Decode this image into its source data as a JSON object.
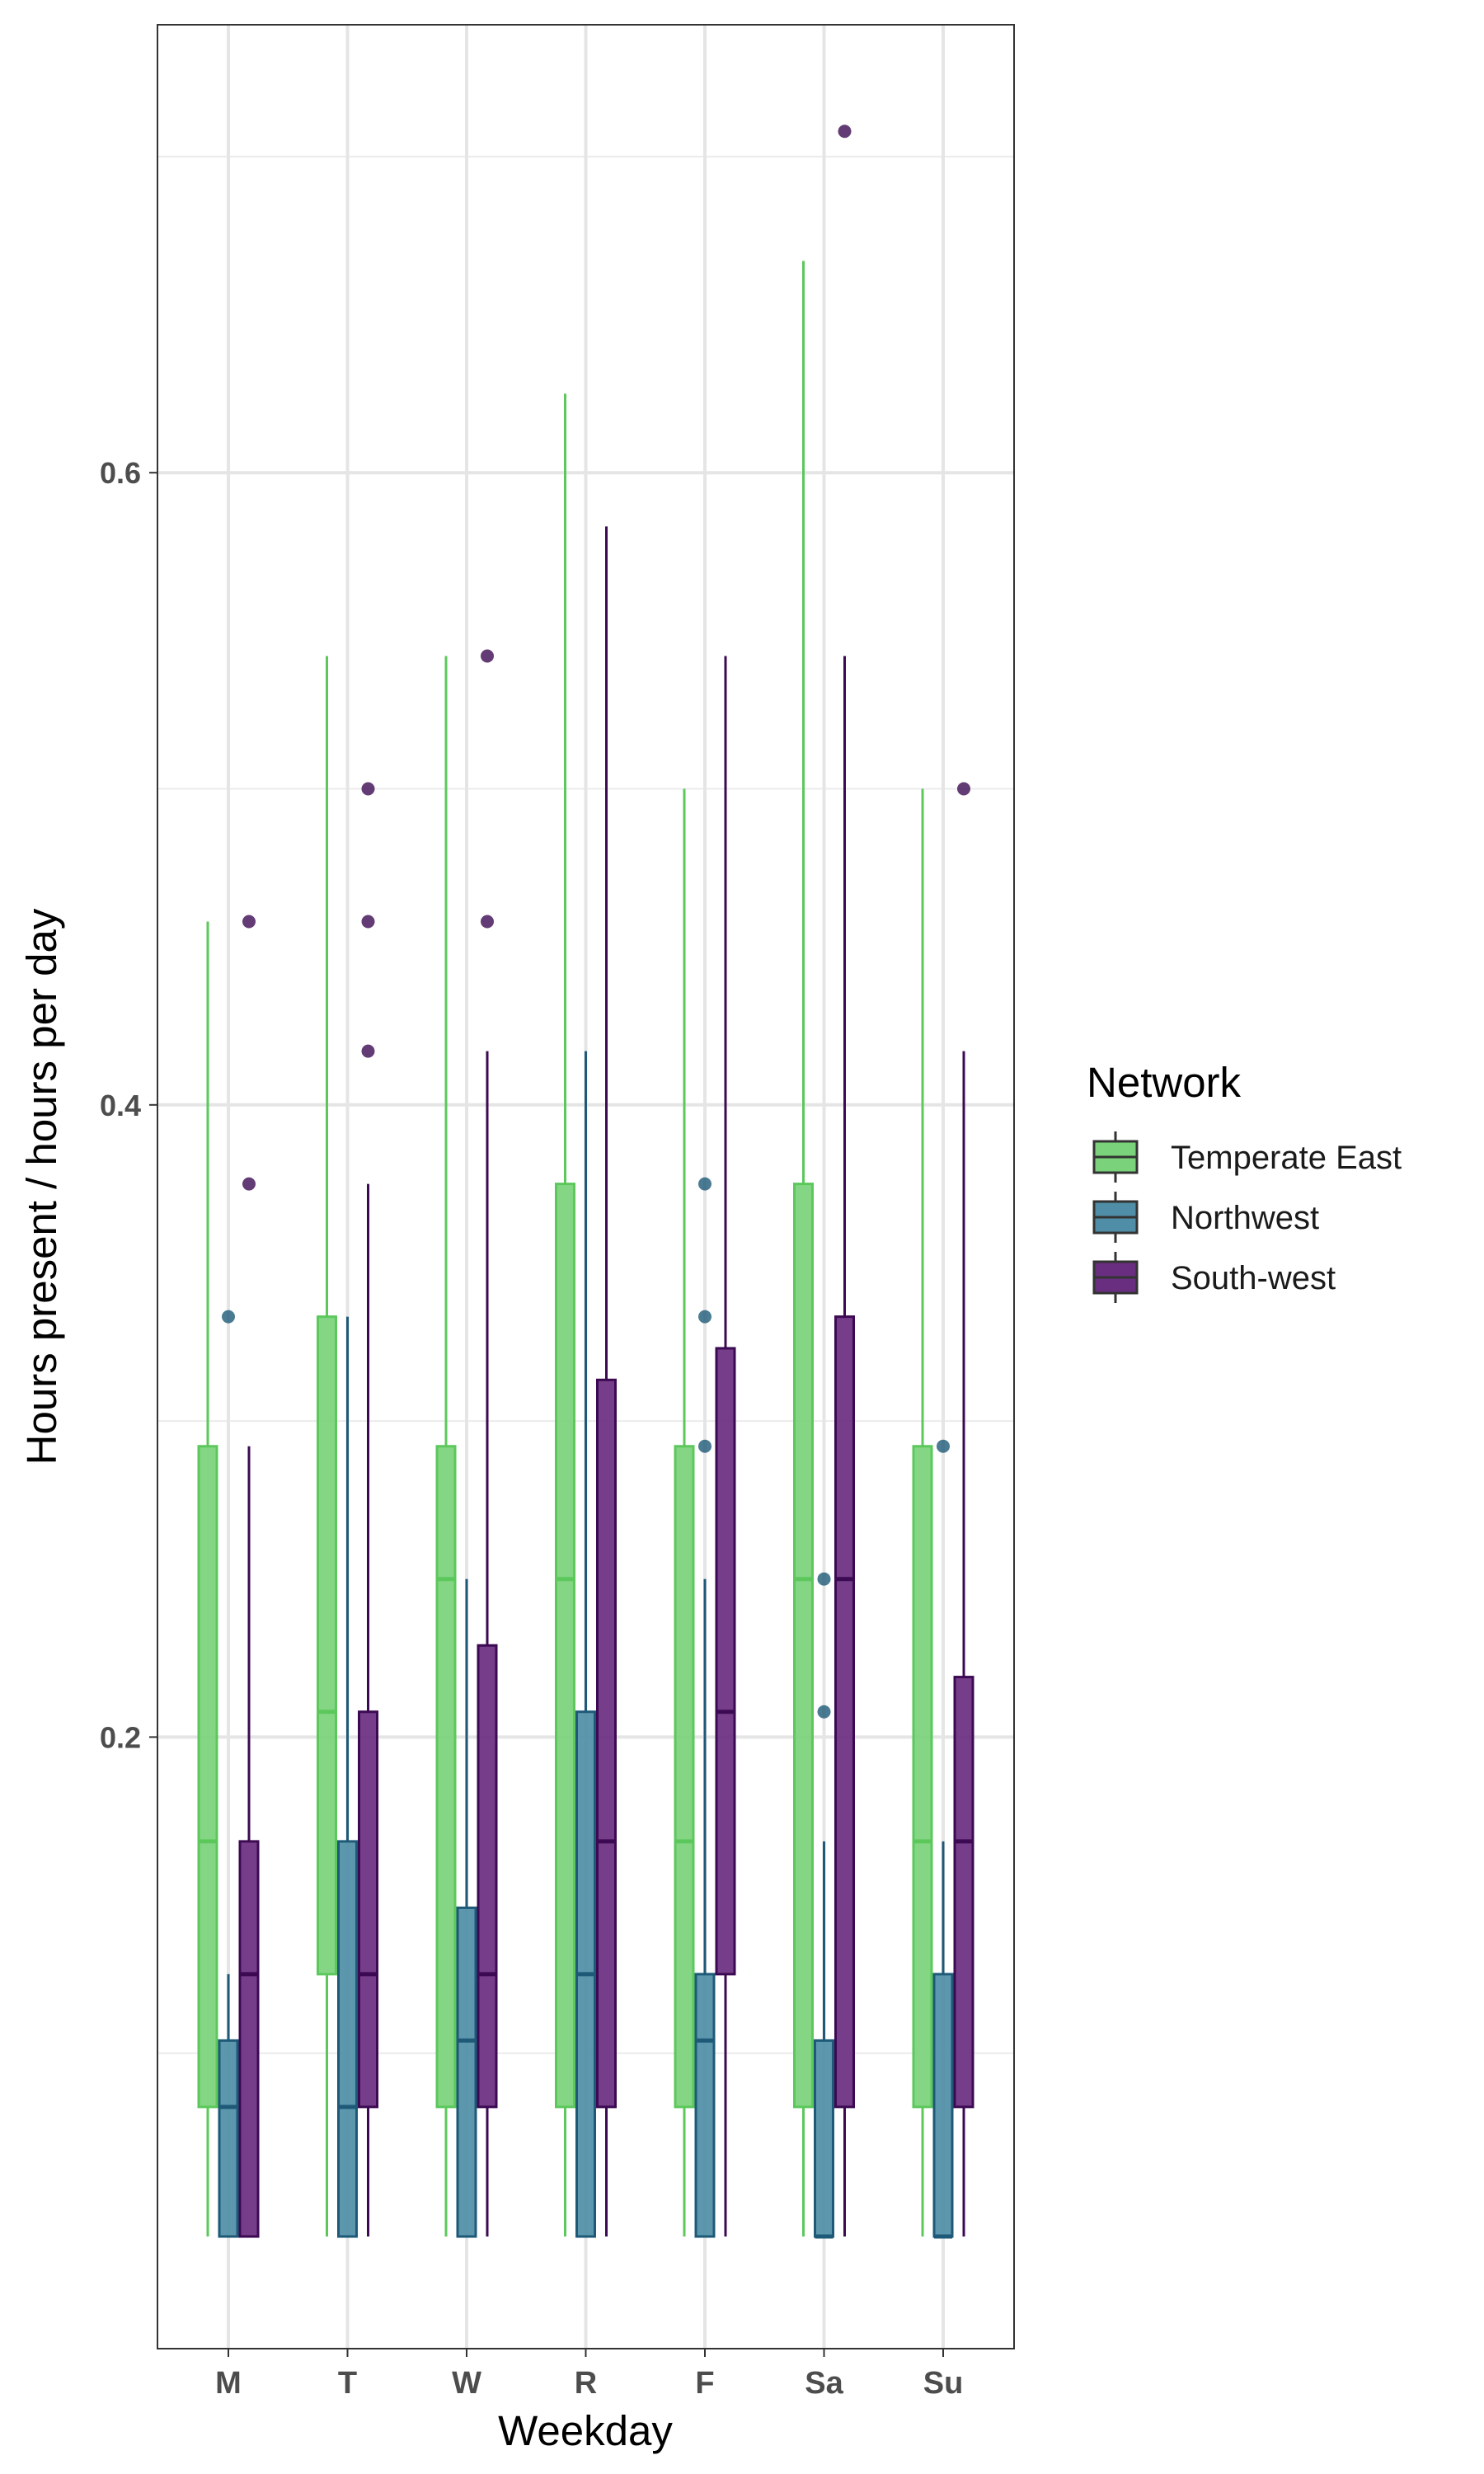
{
  "chart_data": {
    "type": "boxplot",
    "xlabel": "Weekday",
    "ylabel": "Hours present / hours per day",
    "categories": [
      "M",
      "T",
      "W",
      "R",
      "F",
      "Sa",
      "Su"
    ],
    "y_ticks": [
      0.2,
      0.4,
      0.6
    ],
    "y_tick_labels": [
      "0.2",
      "0.4",
      "0.6"
    ],
    "ylim": [
      0.0,
      0.725
    ],
    "grid": true,
    "legend": {
      "title": "Network",
      "position": "right"
    },
    "series": [
      {
        "name": "Temperate East",
        "fill": "#7ad37a",
        "line": "#5cc85c",
        "boxes": [
          {
            "min": 0.042,
            "q1": 0.083,
            "median": 0.167,
            "q3": 0.292,
            "max": 0.458,
            "outliers": []
          },
          {
            "min": 0.042,
            "q1": 0.125,
            "median": 0.208,
            "q3": 0.333,
            "max": 0.542,
            "outliers": []
          },
          {
            "min": 0.042,
            "q1": 0.083,
            "median": 0.25,
            "q3": 0.292,
            "max": 0.542,
            "outliers": []
          },
          {
            "min": 0.042,
            "q1": 0.083,
            "median": 0.25,
            "q3": 0.375,
            "max": 0.625,
            "outliers": []
          },
          {
            "min": 0.042,
            "q1": 0.083,
            "median": 0.167,
            "q3": 0.292,
            "max": 0.5,
            "outliers": []
          },
          {
            "min": 0.042,
            "q1": 0.083,
            "median": 0.25,
            "q3": 0.375,
            "max": 0.667,
            "outliers": []
          },
          {
            "min": 0.042,
            "q1": 0.083,
            "median": 0.167,
            "q3": 0.292,
            "max": 0.5,
            "outliers": []
          }
        ]
      },
      {
        "name": "Northwest",
        "fill": "#4f8ea6",
        "line": "#1e5a78",
        "boxes": [
          {
            "min": 0.042,
            "q1": 0.042,
            "median": 0.083,
            "q3": 0.104,
            "max": 0.125,
            "outliers": [
              0.333
            ]
          },
          {
            "min": 0.042,
            "q1": 0.042,
            "median": 0.083,
            "q3": 0.167,
            "max": 0.333,
            "outliers": []
          },
          {
            "min": 0.042,
            "q1": 0.042,
            "median": 0.104,
            "q3": 0.146,
            "max": 0.25,
            "outliers": []
          },
          {
            "min": 0.042,
            "q1": 0.042,
            "median": 0.125,
            "q3": 0.208,
            "max": 0.417,
            "outliers": []
          },
          {
            "min": 0.042,
            "q1": 0.042,
            "median": 0.104,
            "q3": 0.125,
            "max": 0.25,
            "outliers": [
              0.292,
              0.333,
              0.375
            ]
          },
          {
            "min": 0.042,
            "q1": 0.042,
            "median": 0.042,
            "q3": 0.104,
            "max": 0.167,
            "outliers": [
              0.208,
              0.25
            ]
          },
          {
            "min": 0.042,
            "q1": 0.042,
            "median": 0.042,
            "q3": 0.125,
            "max": 0.167,
            "outliers": [
              0.292
            ]
          }
        ]
      },
      {
        "name": "South-west",
        "fill": "#6a2e80",
        "line": "#3c0a52",
        "boxes": [
          {
            "min": 0.042,
            "q1": 0.042,
            "median": 0.125,
            "q3": 0.167,
            "max": 0.292,
            "outliers": [
              0.375,
              0.458
            ]
          },
          {
            "min": 0.042,
            "q1": 0.083,
            "median": 0.125,
            "q3": 0.208,
            "max": 0.375,
            "outliers": [
              0.417,
              0.458,
              0.5
            ]
          },
          {
            "min": 0.042,
            "q1": 0.083,
            "median": 0.125,
            "q3": 0.229,
            "max": 0.417,
            "outliers": [
              0.458,
              0.542
            ]
          },
          {
            "min": 0.042,
            "q1": 0.083,
            "median": 0.167,
            "q3": 0.313,
            "max": 0.583,
            "outliers": []
          },
          {
            "min": 0.042,
            "q1": 0.125,
            "median": 0.208,
            "q3": 0.323,
            "max": 0.542,
            "outliers": []
          },
          {
            "min": 0.042,
            "q1": 0.083,
            "median": 0.25,
            "q3": 0.333,
            "max": 0.542,
            "outliers": [
              0.708
            ]
          },
          {
            "min": 0.042,
            "q1": 0.083,
            "median": 0.167,
            "q3": 0.219,
            "max": 0.417,
            "outliers": [
              0.5
            ]
          }
        ]
      }
    ]
  }
}
